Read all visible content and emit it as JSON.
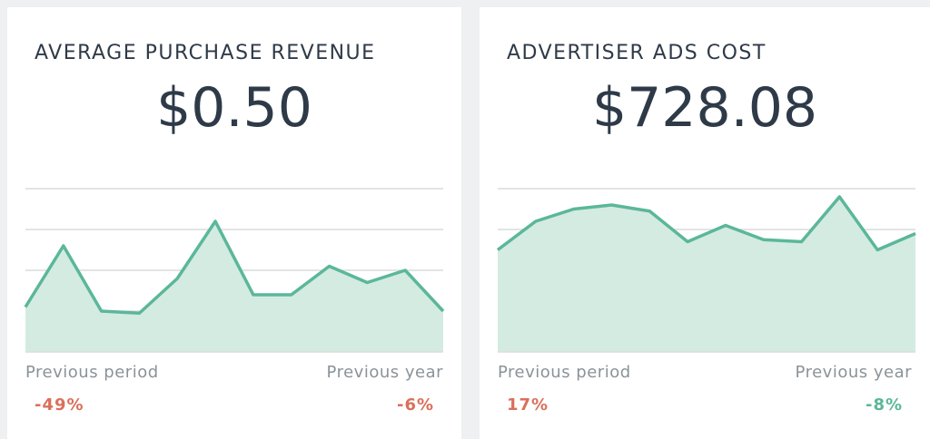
{
  "colors": {
    "line": "#5bb79a",
    "fill": "#d4ebe2",
    "grid": "#dcdcdc",
    "negative": "#d9705b",
    "positive": "#5bb79a"
  },
  "cards": [
    {
      "title": "AVERAGE PURCHASE REVENUE",
      "value": "$0.50",
      "previous_period_label": "Previous period",
      "previous_period_value": "-49%",
      "previous_period_trend": "negative",
      "previous_year_label": "Previous year",
      "previous_year_value": "-6%",
      "previous_year_trend": "negative"
    },
    {
      "title": "ADVERTISER ADS COST",
      "value": "$728.08",
      "previous_period_label": "Previous period",
      "previous_period_value": "17%",
      "previous_period_trend": "negative",
      "previous_year_label": "Previous year",
      "previous_year_value": "-8%",
      "previous_year_trend": "positive"
    }
  ],
  "chart_data": [
    {
      "type": "area",
      "title": "AVERAGE PURCHASE REVENUE",
      "grid": true,
      "ylim": [
        0,
        4
      ],
      "values": [
        1.1,
        2.6,
        1.0,
        0.95,
        1.8,
        3.2,
        1.4,
        1.4,
        2.1,
        1.7,
        2.0,
        1.0
      ]
    },
    {
      "type": "area",
      "title": "ADVERTISER ADS COST",
      "grid": true,
      "ylim": [
        0,
        4
      ],
      "values": [
        2.5,
        3.2,
        3.5,
        3.6,
        3.45,
        2.7,
        3.1,
        2.75,
        2.7,
        3.8,
        2.5,
        2.9
      ]
    }
  ]
}
